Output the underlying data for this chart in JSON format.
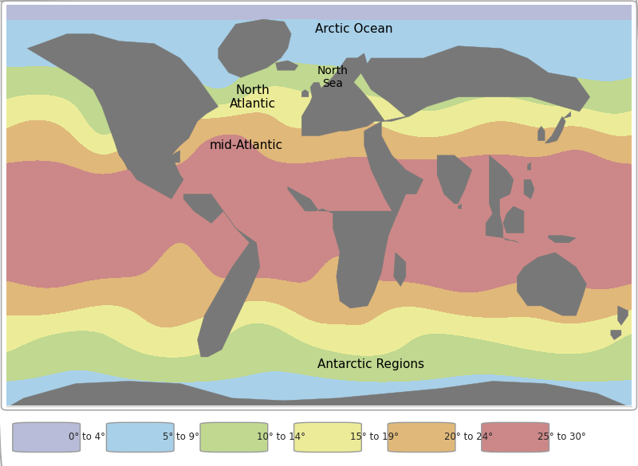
{
  "legend_items": [
    {
      "label": "0° to 4°",
      "color": "#b8bcd8"
    },
    {
      "label": "5° to 9°",
      "color": "#a8d0e8"
    },
    {
      "label": "10° to 14°",
      "color": "#c0d890"
    },
    {
      "label": "15° to 19°",
      "color": "#ecec98"
    },
    {
      "label": "20° to 24°",
      "color": "#e0b87a"
    },
    {
      "label": "25° to 30°",
      "color": "#cc8888"
    }
  ],
  "sst_levels": [
    0,
    4,
    9,
    14,
    19,
    24,
    30
  ],
  "sst_colors": [
    "#b8bcd8",
    "#a8d0e8",
    "#c0d890",
    "#ecec98",
    "#e0b87a",
    "#cc8888"
  ],
  "continent_color": "#787878",
  "labels": [
    {
      "text": "Arctic Ocean",
      "lon": 20,
      "lat": 80,
      "fontsize": 11,
      "ha": "center"
    },
    {
      "text": "North\nSea",
      "lon": 8,
      "lat": 60,
      "fontsize": 10,
      "ha": "center"
    },
    {
      "text": "North\nAtlantic",
      "lon": -38,
      "lat": 52,
      "fontsize": 11,
      "ha": "center"
    },
    {
      "text": "mid-Atlantic",
      "lon": -42,
      "lat": 32,
      "fontsize": 11,
      "ha": "center"
    },
    {
      "text": "Antarctic Regions",
      "lon": 30,
      "lat": -58,
      "fontsize": 11,
      "ha": "center"
    }
  ],
  "map_xlim": [
    -180,
    180
  ],
  "map_ylim": [
    -75,
    90
  ],
  "outer_bg": "#ffffff",
  "border_color": "#aaaaaa"
}
